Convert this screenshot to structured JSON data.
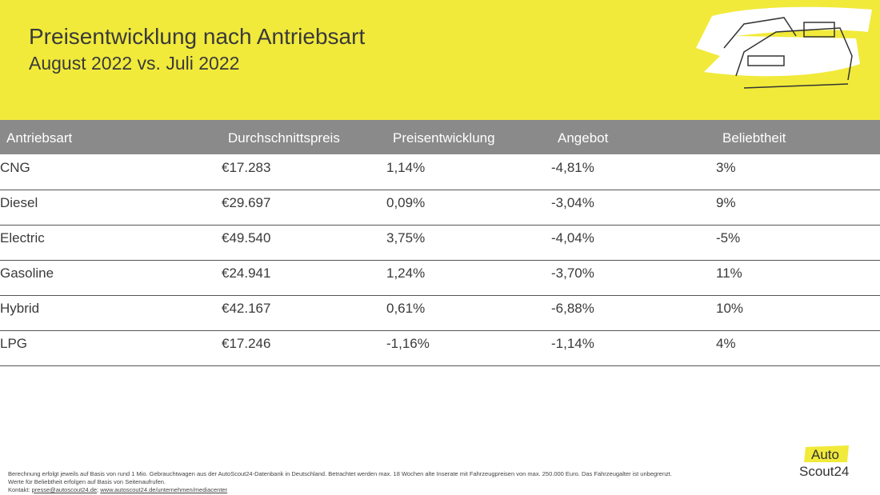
{
  "header": {
    "title": "Preisentwicklung nach Antriebsart",
    "subtitle": "August 2022 vs. Juli 2022"
  },
  "table": {
    "columns": [
      "Antriebsart",
      "Durchschnittspreis",
      "Preisentwicklung",
      "Angebot",
      "Beliebtheit"
    ],
    "rows": [
      [
        "CNG",
        "€17.283",
        "1,14%",
        "-4,81%",
        "3%"
      ],
      [
        "Diesel",
        "€29.697",
        "0,09%",
        "-3,04%",
        "9%"
      ],
      [
        "Electric",
        "€49.540",
        "3,75%",
        "-4,04%",
        "-5%"
      ],
      [
        "Gasoline",
        "€24.941",
        "1,24%",
        "-3,70%",
        "11%"
      ],
      [
        "Hybrid",
        "€42.167",
        "0,61%",
        "-6,88%",
        "10%"
      ],
      [
        "LPG",
        "€17.246",
        "-1,16%",
        "-1,14%",
        "4%"
      ]
    ]
  },
  "footer": {
    "lines": [
      "Berechnung erfolgt jeweils auf Basis von rund 1 Mio. Gebrauchtwagen aus der AutoScout24-Datenbank in Deutschland. Betrachtet werden max. 18 Wochen alte Inserate mit Fahrzeugpreisen von max. 250.000 Euro. Das Fahrzeugalter ist unbegrenzt.",
      "Werte für Beliebtheit erfolgen auf Basis von Seitenaufrufen."
    ],
    "contact_label": "Kontakt:",
    "email": "presse@autoscout24.de",
    "separator": ";",
    "website": "www.autoscout24.de/unternehmen/mediacenter"
  },
  "logo": {
    "line1": "Auto",
    "line2": "Scout24"
  }
}
